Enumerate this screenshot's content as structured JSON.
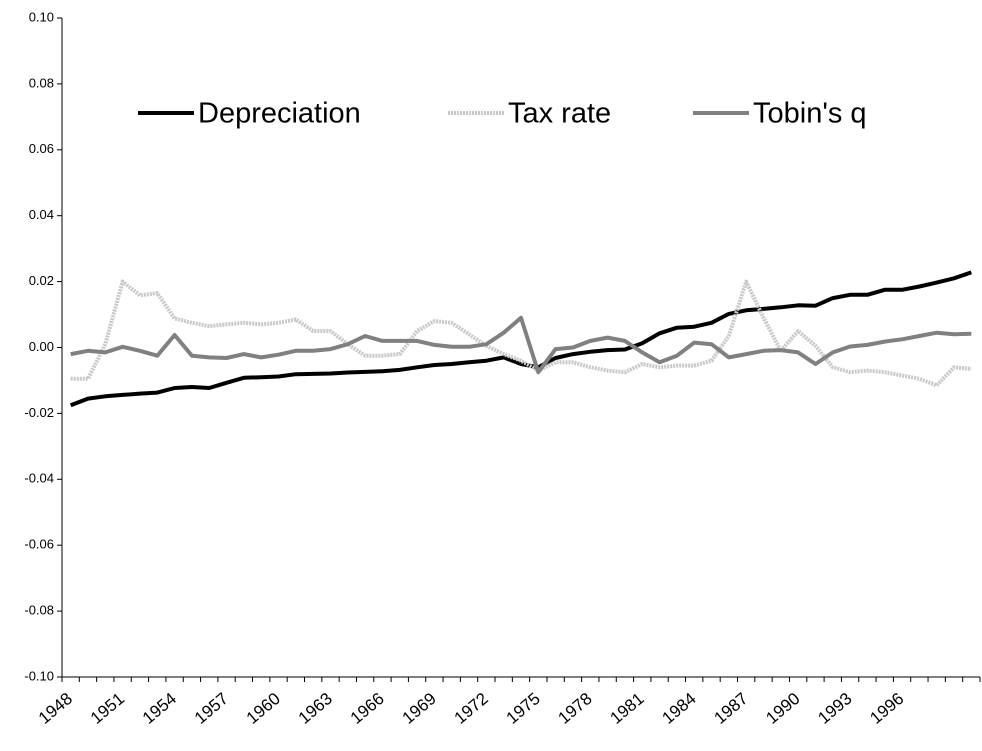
{
  "chart_data": {
    "type": "line",
    "categories": [
      1948,
      null,
      null,
      1951,
      null,
      null,
      1954,
      null,
      null,
      1957,
      null,
      null,
      1960,
      null,
      null,
      1963,
      null,
      null,
      1966,
      null,
      null,
      1969,
      null,
      null,
      1972,
      null,
      null,
      1975,
      null,
      null,
      1978,
      null,
      null,
      1981,
      null,
      null,
      1984,
      null,
      null,
      1987,
      null,
      null,
      1990,
      null,
      null,
      1993,
      null,
      null,
      1996,
      null,
      null,
      null,
      null
    ],
    "series": [
      {
        "name": "Depreciation",
        "color": "#000000",
        "values": [
          -0.0175,
          -0.0155,
          -0.0148,
          -0.0144,
          -0.014,
          -0.0137,
          -0.0123,
          -0.012,
          -0.0123,
          -0.0107,
          -0.0092,
          -0.009,
          -0.0088,
          -0.0081,
          -0.008,
          -0.0079,
          -0.0076,
          -0.0074,
          -0.0072,
          -0.0068,
          -0.006,
          -0.0053,
          -0.005,
          -0.0045,
          -0.004,
          -0.003,
          -0.005,
          -0.006,
          -0.0032,
          -0.002,
          -0.0013,
          -0.0008,
          -0.0006,
          0.0013,
          0.0043,
          0.006,
          0.0063,
          0.0075,
          0.0102,
          0.0113,
          0.0117,
          0.0122,
          0.0128,
          0.0127,
          0.015,
          0.016,
          0.016,
          0.0175,
          0.0175,
          0.0185,
          0.0197,
          0.021,
          0.0228
        ]
      },
      {
        "name": "Tax rate",
        "color": "#c8c8c8",
        "values": [
          -0.0095,
          -0.0095,
          0.001,
          0.02,
          0.0158,
          0.0165,
          0.0088,
          0.0075,
          0.0065,
          0.007,
          0.0075,
          0.007,
          0.0075,
          0.0085,
          0.005,
          0.005,
          0.001,
          -0.0025,
          -0.0025,
          -0.002,
          0.005,
          0.008,
          0.0075,
          0.004,
          0.0005,
          -0.002,
          -0.004,
          -0.007,
          -0.0045,
          -0.0045,
          -0.006,
          -0.007,
          -0.0075,
          -0.005,
          -0.006,
          -0.0055,
          -0.0055,
          -0.004,
          0.0035,
          0.02,
          0.009,
          -0.001,
          0.005,
          0.0005,
          -0.006,
          -0.0075,
          -0.007,
          -0.0075,
          -0.0085,
          -0.0095,
          -0.0115,
          -0.006,
          -0.0065
        ]
      },
      {
        "name": "Tobin's q",
        "color": "#808080",
        "values": [
          -0.002,
          -0.001,
          -0.0015,
          0.0002,
          -0.001,
          -0.0025,
          0.0038,
          -0.0025,
          -0.003,
          -0.0032,
          -0.002,
          -0.003,
          -0.0022,
          -0.001,
          -0.001,
          -0.0005,
          0.001,
          0.0035,
          0.002,
          0.002,
          0.002,
          0.0008,
          0.0002,
          0.0002,
          0.001,
          0.0045,
          0.009,
          -0.0075,
          -0.0005,
          0,
          0.002,
          0.003,
          0.002,
          -0.0015,
          -0.0045,
          -0.0025,
          0.0015,
          0.001,
          -0.003,
          -0.002,
          -0.001,
          -0.0008,
          -0.0015,
          -0.005,
          -0.0015,
          0.0003,
          0.0008,
          0.0018,
          0.0025,
          0.0035,
          0.0045,
          0.004,
          0.0042
        ]
      }
    ],
    "ylim": [
      -0.1,
      0.1
    ],
    "yticks": [
      {
        "value": -0.1,
        "label": "-0.10"
      },
      {
        "value": -0.08,
        "label": "-0.08"
      },
      {
        "value": -0.06,
        "label": "-0.06"
      },
      {
        "value": -0.04,
        "label": "-0.04"
      },
      {
        "value": -0.02,
        "label": "-0.02"
      },
      {
        "value": 0,
        "label": "0.00"
      },
      {
        "value": 0.02,
        "label": "0.02"
      },
      {
        "value": 0.04,
        "label": "0.04"
      },
      {
        "value": 0.06,
        "label": "0.06"
      },
      {
        "value": 0.08,
        "label": "0.08"
      },
      {
        "value": 0.1,
        "label": "0.10"
      }
    ],
    "grid": false,
    "legend": "top"
  }
}
